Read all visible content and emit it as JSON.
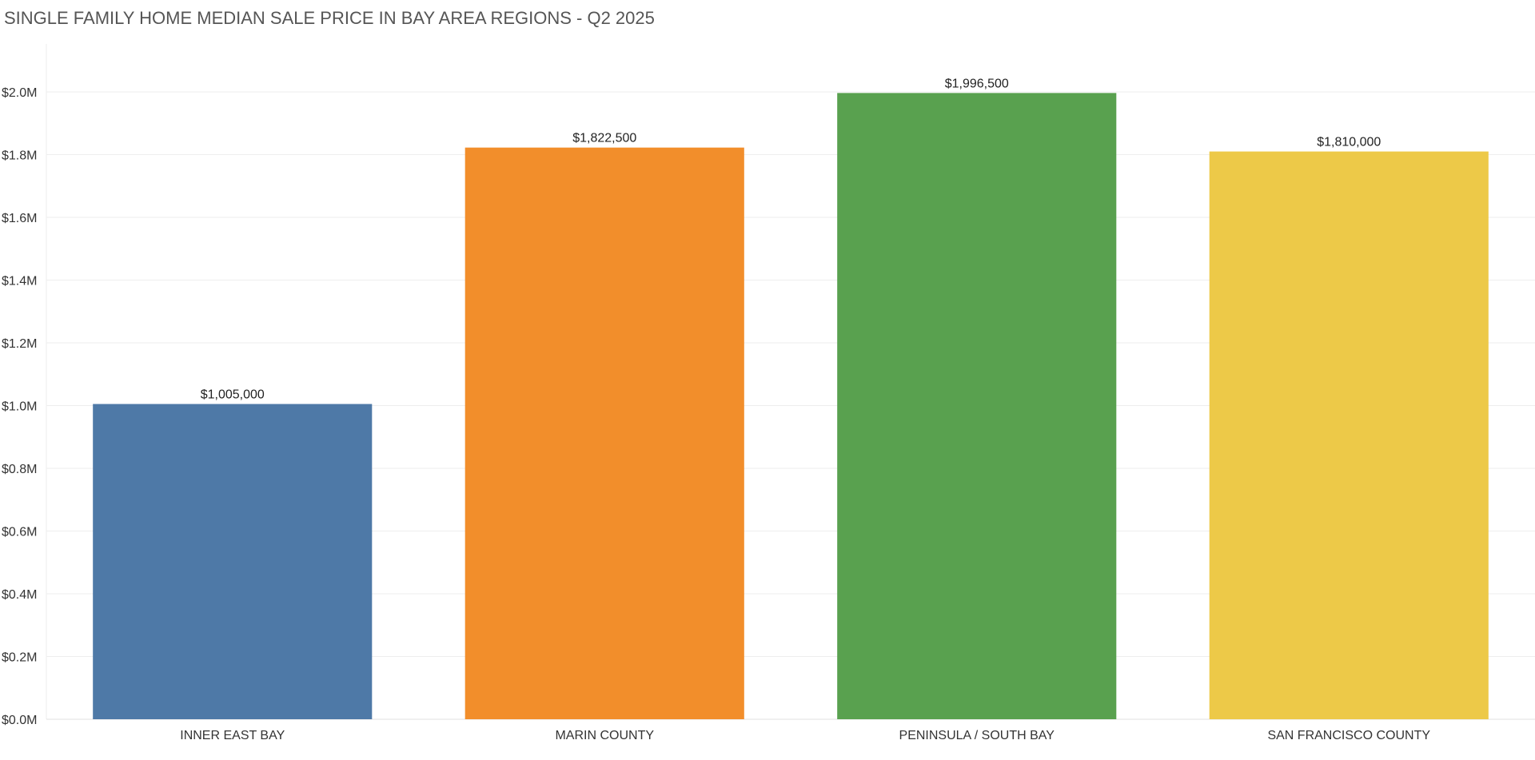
{
  "chart_data": {
    "type": "bar",
    "title": "SINGLE FAMILY HOME MEDIAN SALE PRICE IN BAY AREA REGIONS - Q2 2025",
    "xlabel": "",
    "ylabel": "",
    "categories": [
      "INNER EAST BAY",
      "MARIN COUNTY",
      "PENINSULA / SOUTH BAY",
      "SAN FRANCISCO COUNTY"
    ],
    "values": [
      1005000,
      1822500,
      1996500,
      1810000
    ],
    "data_labels": [
      "$1,005,000",
      "$1,822,500",
      "$1,996,500",
      "$1,810,000"
    ],
    "colors": [
      "#4e79a7",
      "#f28e2b",
      "#59a14f",
      "#edc948"
    ],
    "ylim": [
      0,
      2000000
    ],
    "yticks": [
      0,
      200000,
      400000,
      600000,
      800000,
      1000000,
      1200000,
      1400000,
      1600000,
      1800000,
      2000000
    ],
    "ytick_labels": [
      "$0.0M",
      "$0.2M",
      "$0.4M",
      "$0.6M",
      "$0.8M",
      "$1.0M",
      "$1.2M",
      "$1.4M",
      "$1.6M",
      "$1.8M",
      "$2.0M"
    ],
    "grid": true,
    "gridline_color": "#eeeeee",
    "legend": "none"
  }
}
